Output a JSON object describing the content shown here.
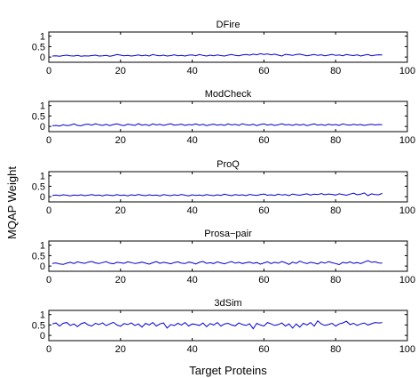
{
  "figure": {
    "ylabel": "MQAP Weight",
    "xlabel": "Target Proteins",
    "line_color": "#0000cc"
  },
  "chart_data": [
    {
      "type": "line",
      "title": "DFire",
      "x_ticks": [
        0,
        20,
        40,
        60,
        80,
        100
      ],
      "y_ticks": [
        0,
        0.5,
        1
      ],
      "xlim": [
        0,
        100
      ],
      "ylim": [
        -0.25,
        1.2
      ],
      "series": [
        {
          "values": [
            0.05,
            0.06,
            0.04,
            0.07,
            0.09,
            0.06,
            0.05,
            0.08,
            0.04,
            0.06,
            0.05,
            0.07,
            0.09,
            0.05,
            0.06,
            0.08,
            0.04,
            0.07,
            0.12,
            0.09,
            0.06,
            0.08,
            0.05,
            0.07,
            0.1,
            0.06,
            0.09,
            0.05,
            0.12,
            0.08,
            0.06,
            0.09,
            0.05,
            0.07,
            0.11,
            0.06,
            0.08,
            0.05,
            0.09,
            0.1,
            0.06,
            0.12,
            0.08,
            0.05,
            0.09,
            0.06,
            0.1,
            0.07,
            0.05,
            0.09,
            0.12,
            0.08,
            0.06,
            0.1,
            0.12,
            0.09,
            0.14,
            0.11,
            0.16,
            0.12,
            0.15,
            0.11,
            0.14,
            0.09,
            0.05,
            0.13,
            0.11,
            0.08,
            0.12,
            0.14,
            0.1,
            0.06,
            0.09,
            0.12,
            0.08,
            0.11,
            0.06,
            0.09,
            0.13,
            0.08,
            0.1,
            0.06,
            0.12,
            0.09,
            0.07,
            0.11,
            0.05,
            0.09,
            0.12,
            0.06,
            0.09,
            0.11,
            0.1
          ]
        }
      ]
    },
    {
      "type": "line",
      "title": "ModCheck",
      "x_ticks": [
        0,
        20,
        40,
        60,
        80,
        100
      ],
      "y_ticks": [
        0,
        0.5,
        1
      ],
      "xlim": [
        0,
        100
      ],
      "ylim": [
        -0.25,
        1.2
      ],
      "series": [
        {
          "values": [
            0.03,
            0.05,
            0.02,
            0.08,
            0.04,
            0.06,
            0.12,
            0.05,
            0.03,
            0.09,
            0.11,
            0.06,
            0.13,
            0.08,
            0.05,
            0.1,
            0.04,
            0.09,
            0.12,
            0.07,
            0.04,
            0.11,
            0.08,
            0.05,
            0.13,
            0.06,
            0.09,
            0.04,
            0.12,
            0.07,
            0.1,
            0.05,
            0.09,
            0.13,
            0.06,
            0.08,
            0.11,
            0.05,
            0.09,
            0.07,
            0.12,
            0.06,
            0.1,
            0.04,
            0.08,
            0.11,
            0.06,
            0.09,
            0.05,
            0.12,
            0.07,
            0.1,
            0.05,
            0.13,
            0.08,
            0.06,
            0.11,
            0.04,
            0.09,
            0.12,
            0.06,
            0.1,
            0.05,
            0.08,
            0.13,
            0.07,
            0.09,
            0.05,
            0.11,
            0.06,
            0.1,
            0.04,
            0.08,
            0.12,
            0.06,
            0.09,
            0.05,
            0.11,
            0.07,
            0.09,
            0.05,
            0.12,
            0.08,
            0.06,
            0.1,
            0.07,
            0.09,
            0.05,
            0.08,
            0.1,
            0.07,
            0.09,
            0.08
          ]
        }
      ]
    },
    {
      "type": "line",
      "title": "ProQ",
      "x_ticks": [
        0,
        20,
        40,
        60,
        80,
        100
      ],
      "y_ticks": [
        0,
        0.5,
        1
      ],
      "xlim": [
        0,
        100
      ],
      "ylim": [
        -0.25,
        1.2
      ],
      "series": [
        {
          "values": [
            0.06,
            0.08,
            0.05,
            0.09,
            0.07,
            0.04,
            0.08,
            0.06,
            0.09,
            0.05,
            0.07,
            0.1,
            0.06,
            0.08,
            0.04,
            0.09,
            0.07,
            0.05,
            0.1,
            0.06,
            0.08,
            0.04,
            0.09,
            0.06,
            0.11,
            0.07,
            0.05,
            0.09,
            0.06,
            0.08,
            0.04,
            0.1,
            0.07,
            0.05,
            0.09,
            0.06,
            0.11,
            0.07,
            0.04,
            0.09,
            0.06,
            0.08,
            0.05,
            0.1,
            0.07,
            0.05,
            0.09,
            0.06,
            0.12,
            0.08,
            0.05,
            0.1,
            0.07,
            0.09,
            0.05,
            0.11,
            0.08,
            0.06,
            0.1,
            0.13,
            0.07,
            0.09,
            0.06,
            0.12,
            0.08,
            0.1,
            0.05,
            0.13,
            0.09,
            0.07,
            0.11,
            0.14,
            0.08,
            0.12,
            0.1,
            0.15,
            0.09,
            0.13,
            0.11,
            0.08,
            0.14,
            0.1,
            0.07,
            0.12,
            0.17,
            0.09,
            0.12,
            0.18,
            0.05,
            0.14,
            0.1,
            0.09,
            0.16
          ]
        }
      ]
    },
    {
      "type": "line",
      "title": "Prosa−pair",
      "x_ticks": [
        0,
        20,
        40,
        60,
        80,
        100
      ],
      "y_ticks": [
        0,
        0.5,
        1
      ],
      "xlim": [
        0,
        100
      ],
      "ylim": [
        -0.25,
        1.2
      ],
      "series": [
        {
          "values": [
            0.12,
            0.15,
            0.1,
            0.08,
            0.14,
            0.18,
            0.12,
            0.2,
            0.16,
            0.13,
            0.19,
            0.22,
            0.15,
            0.12,
            0.17,
            0.21,
            0.14,
            0.11,
            0.18,
            0.16,
            0.13,
            0.2,
            0.17,
            0.12,
            0.15,
            0.19,
            0.14,
            0.09,
            0.16,
            0.21,
            0.13,
            0.18,
            0.15,
            0.11,
            0.17,
            0.2,
            0.14,
            0.12,
            0.19,
            0.16,
            0.1,
            0.18,
            0.22,
            0.13,
            0.16,
            0.12,
            0.2,
            0.15,
            0.11,
            0.17,
            0.21,
            0.14,
            0.18,
            0.12,
            0.16,
            0.19,
            0.13,
            0.17,
            0.09,
            0.15,
            0.2,
            0.12,
            0.18,
            0.14,
            0.22,
            0.16,
            0.08,
            0.19,
            0.13,
            0.23,
            0.17,
            0.12,
            0.18,
            0.15,
            0.1,
            0.19,
            0.14,
            0.21,
            0.16,
            0.12,
            0.07,
            0.18,
            0.14,
            0.2,
            0.13,
            0.17,
            0.12,
            0.19,
            0.26,
            0.18,
            0.2,
            0.15,
            0.14
          ]
        }
      ]
    },
    {
      "type": "line",
      "title": "3dSim",
      "x_ticks": [
        0,
        20,
        40,
        60,
        80,
        100
      ],
      "y_ticks": [
        0,
        0.5,
        1
      ],
      "xlim": [
        0,
        100
      ],
      "ylim": [
        -0.25,
        1.2
      ],
      "series": [
        {
          "values": [
            0.55,
            0.6,
            0.45,
            0.58,
            0.62,
            0.48,
            0.55,
            0.42,
            0.56,
            0.62,
            0.5,
            0.45,
            0.58,
            0.52,
            0.6,
            0.47,
            0.55,
            0.63,
            0.5,
            0.44,
            0.57,
            0.52,
            0.6,
            0.48,
            0.55,
            0.4,
            0.58,
            0.5,
            0.62,
            0.45,
            0.55,
            0.6,
            0.35,
            0.52,
            0.47,
            0.58,
            0.5,
            0.62,
            0.45,
            0.55,
            0.52,
            0.48,
            0.6,
            0.42,
            0.57,
            0.5,
            0.62,
            0.45,
            0.55,
            0.58,
            0.5,
            0.46,
            0.6,
            0.52,
            0.48,
            0.56,
            0.32,
            0.58,
            0.5,
            0.45,
            0.62,
            0.55,
            0.48,
            0.52,
            0.6,
            0.45,
            0.55,
            0.35,
            0.55,
            0.4,
            0.58,
            0.5,
            0.62,
            0.45,
            0.7,
            0.55,
            0.48,
            0.52,
            0.58,
            0.45,
            0.55,
            0.6,
            0.68,
            0.52,
            0.58,
            0.48,
            0.55,
            0.6,
            0.5,
            0.56,
            0.62,
            0.6,
            0.61
          ]
        }
      ]
    }
  ]
}
